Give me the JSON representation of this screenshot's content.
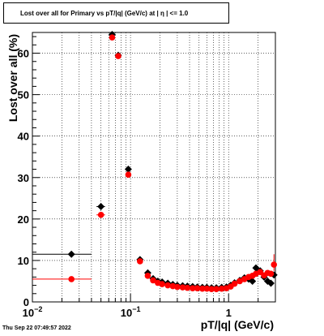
{
  "chart_data": {
    "type": "scatter",
    "title": "Lost over all for Primary vs pT/|q| (GeV/c) at |  η | <= 1.0",
    "xlabel": "pT/|q| (GeV/c)",
    "ylabel": "Lost over all (%)",
    "x_scale": "log",
    "xlim": [
      0.01,
      3.0
    ],
    "ylim": [
      0,
      65
    ],
    "grid": true,
    "x_ticks": [
      {
        "value": 0.01,
        "base": "10",
        "exp": "−2"
      },
      {
        "value": 0.1,
        "base": "10",
        "exp": "−1"
      },
      {
        "value": 1,
        "base": "1",
        "exp": ""
      }
    ],
    "y_ticks": [
      0,
      10,
      20,
      30,
      40,
      50,
      60
    ],
    "series": [
      {
        "color": "#000000",
        "marker": "diamond",
        "points": [
          {
            "x": 0.025,
            "y": 11.5,
            "xlo": 0.01,
            "xhi": 0.04
          },
          {
            "x": 0.05,
            "y": 23.0,
            "xlo": 0.045,
            "xhi": 0.055
          },
          {
            "x": 0.065,
            "y": 64.5,
            "xlo": 0.061,
            "xhi": 0.069
          },
          {
            "x": 0.075,
            "y": 59.5,
            "xlo": 0.071,
            "xhi": 0.079
          },
          {
            "x": 0.095,
            "y": 32.0,
            "xlo": 0.09,
            "xhi": 0.1
          },
          {
            "x": 0.125,
            "y": 10.2,
            "xlo": 0.12,
            "xhi": 0.13
          },
          {
            "x": 0.15,
            "y": 7.0
          },
          {
            "x": 0.17,
            "y": 5.6
          },
          {
            "x": 0.19,
            "y": 5.0
          },
          {
            "x": 0.21,
            "y": 4.8
          },
          {
            "x": 0.24,
            "y": 4.5
          },
          {
            "x": 0.27,
            "y": 4.2
          },
          {
            "x": 0.3,
            "y": 4.0
          },
          {
            "x": 0.34,
            "y": 3.9
          },
          {
            "x": 0.38,
            "y": 3.8
          },
          {
            "x": 0.43,
            "y": 3.7
          },
          {
            "x": 0.48,
            "y": 3.6
          },
          {
            "x": 0.54,
            "y": 3.5
          },
          {
            "x": 0.6,
            "y": 3.5
          },
          {
            "x": 0.67,
            "y": 3.4
          },
          {
            "x": 0.75,
            "y": 3.4
          },
          {
            "x": 0.85,
            "y": 3.5
          },
          {
            "x": 0.95,
            "y": 3.6
          },
          {
            "x": 1.05,
            "y": 4.0
          },
          {
            "x": 1.15,
            "y": 4.6
          },
          {
            "x": 1.3,
            "y": 5.2
          },
          {
            "x": 1.45,
            "y": 5.8
          },
          {
            "x": 1.6,
            "y": 5.5
          },
          {
            "x": 1.75,
            "y": 5.0
          },
          {
            "x": 1.9,
            "y": 8.2
          },
          {
            "x": 2.1,
            "y": 7.5
          },
          {
            "x": 2.3,
            "y": 6.0
          },
          {
            "x": 2.5,
            "y": 5.0
          },
          {
            "x": 2.7,
            "y": 4.5
          },
          {
            "x": 2.9,
            "y": 6.5
          }
        ]
      },
      {
        "color": "#ff0000",
        "marker": "circle",
        "points": [
          {
            "x": 0.025,
            "y": 5.5,
            "xlo": 0.01,
            "xhi": 0.04
          },
          {
            "x": 0.05,
            "y": 21.0,
            "xlo": 0.045,
            "xhi": 0.055
          },
          {
            "x": 0.065,
            "y": 63.8,
            "xlo": 0.061,
            "xhi": 0.069
          },
          {
            "x": 0.075,
            "y": 59.3,
            "xlo": 0.071,
            "xhi": 0.079
          },
          {
            "x": 0.095,
            "y": 30.7,
            "xlo": 0.09,
            "xhi": 0.1
          },
          {
            "x": 0.125,
            "y": 9.8,
            "xlo": 0.12,
            "xhi": 0.13
          },
          {
            "x": 0.15,
            "y": 6.3
          },
          {
            "x": 0.17,
            "y": 5.2
          },
          {
            "x": 0.19,
            "y": 4.6
          },
          {
            "x": 0.21,
            "y": 4.3
          },
          {
            "x": 0.24,
            "y": 4.0
          },
          {
            "x": 0.27,
            "y": 3.8
          },
          {
            "x": 0.3,
            "y": 3.6
          },
          {
            "x": 0.34,
            "y": 3.5
          },
          {
            "x": 0.38,
            "y": 3.4
          },
          {
            "x": 0.43,
            "y": 3.3
          },
          {
            "x": 0.48,
            "y": 3.3
          },
          {
            "x": 0.54,
            "y": 3.2
          },
          {
            "x": 0.6,
            "y": 3.2
          },
          {
            "x": 0.67,
            "y": 3.1
          },
          {
            "x": 0.75,
            "y": 3.1
          },
          {
            "x": 0.85,
            "y": 3.2
          },
          {
            "x": 0.95,
            "y": 3.3
          },
          {
            "x": 1.05,
            "y": 3.7
          },
          {
            "x": 1.15,
            "y": 4.4
          },
          {
            "x": 1.3,
            "y": 5.0
          },
          {
            "x": 1.45,
            "y": 5.5
          },
          {
            "x": 1.6,
            "y": 6.0
          },
          {
            "x": 1.75,
            "y": 6.3
          },
          {
            "x": 1.9,
            "y": 6.8
          },
          {
            "x": 2.1,
            "y": 7.2
          },
          {
            "x": 2.3,
            "y": 6.4
          },
          {
            "x": 2.5,
            "y": 7.0
          },
          {
            "x": 2.7,
            "y": 6.8
          },
          {
            "x": 2.9,
            "y": 9.0,
            "ylo": 7.5,
            "yhi": 11.5
          }
        ]
      }
    ]
  },
  "footer": {
    "timestamp": "Thu Sep 22 07:49:57 2022"
  }
}
